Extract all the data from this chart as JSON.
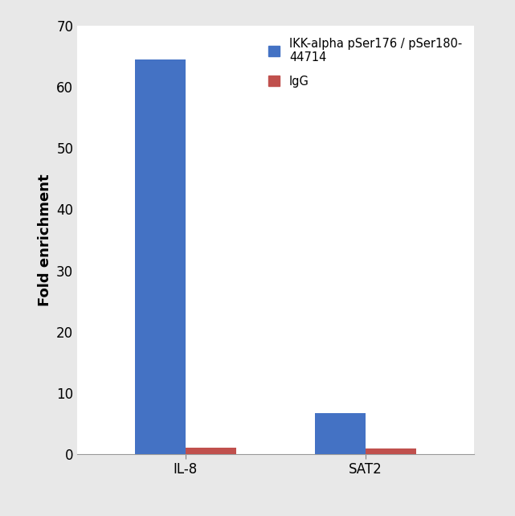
{
  "categories": [
    "IL-8",
    "SAT2"
  ],
  "blue_values": [
    64.5,
    6.7
  ],
  "red_values": [
    1.0,
    0.9
  ],
  "blue_color": "#4472C4",
  "red_color": "#C0504D",
  "ylabel": "Fold enrichment",
  "ylim": [
    0,
    70
  ],
  "yticks": [
    0,
    10,
    20,
    30,
    40,
    50,
    60,
    70
  ],
  "legend_blue": "IKK-alpha pSer176 / pSer180-\n44714",
  "legend_red": "IgG",
  "bar_width": 0.28,
  "background_color": "#ffffff",
  "outer_bg": "#e8e8e8",
  "tick_fontsize": 12,
  "label_fontsize": 13,
  "legend_fontsize": 10.5
}
